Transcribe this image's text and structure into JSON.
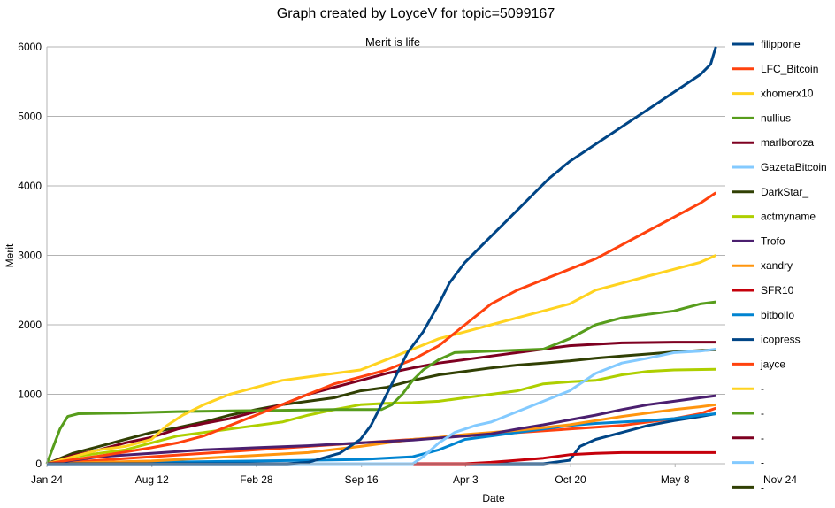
{
  "chart_data": {
    "type": "line",
    "title": "Graph created by LoyceV for topic=5099167",
    "subtitle": "Merit is life",
    "xlabel": "Date",
    "ylabel": "Merit",
    "ylim": [
      0,
      6000
    ],
    "yticks": [
      0,
      1000,
      2000,
      3000,
      4000,
      5000,
      6000
    ],
    "xlim": [
      0,
      1400
    ],
    "xticks": [
      {
        "x": 0,
        "label": "Jan 24"
      },
      {
        "x": 201,
        "label": "Aug 12"
      },
      {
        "x": 401,
        "label": "Feb 28"
      },
      {
        "x": 602,
        "label": "Sep 16"
      },
      {
        "x": 801,
        "label": "Apr 3"
      },
      {
        "x": 1002,
        "label": "Oct 20"
      },
      {
        "x": 1202,
        "label": "May 8"
      },
      {
        "x": 1403,
        "label": "Nov 24"
      }
    ],
    "grid": "horizontal",
    "legend_position": "right",
    "series": [
      {
        "name": "filippone",
        "color": "#004586",
        "points": [
          [
            0,
            0
          ],
          [
            460,
            0
          ],
          [
            500,
            20
          ],
          [
            560,
            150
          ],
          [
            600,
            350
          ],
          [
            620,
            550
          ],
          [
            640,
            850
          ],
          [
            660,
            1150
          ],
          [
            690,
            1600
          ],
          [
            720,
            1900
          ],
          [
            750,
            2300
          ],
          [
            770,
            2600
          ],
          [
            800,
            2900
          ],
          [
            840,
            3200
          ],
          [
            880,
            3500
          ],
          [
            920,
            3800
          ],
          [
            960,
            4100
          ],
          [
            1000,
            4350
          ],
          [
            1050,
            4600
          ],
          [
            1100,
            4850
          ],
          [
            1150,
            5100
          ],
          [
            1200,
            5350
          ],
          [
            1250,
            5600
          ],
          [
            1270,
            5750
          ],
          [
            1280,
            6000
          ]
        ]
      },
      {
        "name": "LFC_Bitcoin",
        "color": "#ff420e",
        "points": [
          [
            0,
            0
          ],
          [
            50,
            60
          ],
          [
            100,
            110
          ],
          [
            150,
            170
          ],
          [
            200,
            230
          ],
          [
            250,
            300
          ],
          [
            300,
            400
          ],
          [
            350,
            550
          ],
          [
            400,
            700
          ],
          [
            450,
            850
          ],
          [
            500,
            1000
          ],
          [
            550,
            1150
          ],
          [
            600,
            1250
          ],
          [
            650,
            1350
          ],
          [
            700,
            1500
          ],
          [
            750,
            1700
          ],
          [
            800,
            2000
          ],
          [
            850,
            2300
          ],
          [
            900,
            2500
          ],
          [
            950,
            2650
          ],
          [
            1000,
            2800
          ],
          [
            1050,
            2950
          ],
          [
            1100,
            3150
          ],
          [
            1150,
            3350
          ],
          [
            1200,
            3550
          ],
          [
            1250,
            3750
          ],
          [
            1280,
            3900
          ]
        ]
      },
      {
        "name": "xhomerx10",
        "color": "#ffd320",
        "points": [
          [
            0,
            0
          ],
          [
            50,
            100
          ],
          [
            100,
            200
          ],
          [
            150,
            250
          ],
          [
            200,
            350
          ],
          [
            230,
            550
          ],
          [
            260,
            700
          ],
          [
            300,
            850
          ],
          [
            350,
            1000
          ],
          [
            400,
            1100
          ],
          [
            450,
            1200
          ],
          [
            500,
            1250
          ],
          [
            550,
            1300
          ],
          [
            600,
            1350
          ],
          [
            650,
            1500
          ],
          [
            700,
            1650
          ],
          [
            750,
            1800
          ],
          [
            800,
            1900
          ],
          [
            850,
            2000
          ],
          [
            900,
            2100
          ],
          [
            950,
            2200
          ],
          [
            1000,
            2300
          ],
          [
            1050,
            2500
          ],
          [
            1100,
            2600
          ],
          [
            1150,
            2700
          ],
          [
            1200,
            2800
          ],
          [
            1250,
            2900
          ],
          [
            1280,
            3000
          ]
        ]
      },
      {
        "name": "nullius",
        "color": "#579d1c",
        "points": [
          [
            0,
            0
          ],
          [
            10,
            200
          ],
          [
            25,
            500
          ],
          [
            40,
            680
          ],
          [
            60,
            720
          ],
          [
            150,
            730
          ],
          [
            250,
            750
          ],
          [
            350,
            760
          ],
          [
            450,
            770
          ],
          [
            550,
            780
          ],
          [
            640,
            780
          ],
          [
            660,
            850
          ],
          [
            680,
            1000
          ],
          [
            700,
            1200
          ],
          [
            720,
            1350
          ],
          [
            750,
            1500
          ],
          [
            780,
            1600
          ],
          [
            850,
            1620
          ],
          [
            950,
            1650
          ],
          [
            1000,
            1800
          ],
          [
            1050,
            2000
          ],
          [
            1100,
            2100
          ],
          [
            1150,
            2150
          ],
          [
            1200,
            2200
          ],
          [
            1250,
            2300
          ],
          [
            1280,
            2330
          ]
        ]
      },
      {
        "name": "marlboroza",
        "color": "#7e0021",
        "points": [
          [
            0,
            0
          ],
          [
            50,
            120
          ],
          [
            100,
            200
          ],
          [
            150,
            300
          ],
          [
            200,
            380
          ],
          [
            250,
            500
          ],
          [
            300,
            580
          ],
          [
            350,
            650
          ],
          [
            400,
            750
          ],
          [
            450,
            850
          ],
          [
            500,
            1000
          ],
          [
            550,
            1100
          ],
          [
            600,
            1200
          ],
          [
            650,
            1300
          ],
          [
            700,
            1380
          ],
          [
            750,
            1450
          ],
          [
            800,
            1500
          ],
          [
            850,
            1550
          ],
          [
            900,
            1600
          ],
          [
            950,
            1650
          ],
          [
            1000,
            1700
          ],
          [
            1050,
            1720
          ],
          [
            1100,
            1740
          ],
          [
            1200,
            1750
          ],
          [
            1280,
            1750
          ]
        ]
      },
      {
        "name": "GazetaBitcoin",
        "color": "#83caff",
        "points": [
          [
            0,
            0
          ],
          [
            700,
            0
          ],
          [
            720,
            100
          ],
          [
            750,
            300
          ],
          [
            780,
            450
          ],
          [
            820,
            550
          ],
          [
            850,
            600
          ],
          [
            900,
            750
          ],
          [
            950,
            900
          ],
          [
            1000,
            1050
          ],
          [
            1050,
            1300
          ],
          [
            1100,
            1450
          ],
          [
            1150,
            1520
          ],
          [
            1200,
            1600
          ],
          [
            1250,
            1620
          ],
          [
            1280,
            1650
          ]
        ]
      },
      {
        "name": "DarkStar_",
        "color": "#314004",
        "points": [
          [
            0,
            0
          ],
          [
            50,
            150
          ],
          [
            100,
            250
          ],
          [
            150,
            350
          ],
          [
            200,
            450
          ],
          [
            250,
            520
          ],
          [
            300,
            600
          ],
          [
            350,
            700
          ],
          [
            400,
            780
          ],
          [
            450,
            850
          ],
          [
            500,
            900
          ],
          [
            550,
            950
          ],
          [
            600,
            1050
          ],
          [
            650,
            1100
          ],
          [
            700,
            1200
          ],
          [
            750,
            1280
          ],
          [
            800,
            1330
          ],
          [
            850,
            1380
          ],
          [
            900,
            1420
          ],
          [
            950,
            1450
          ],
          [
            1000,
            1480
          ],
          [
            1050,
            1520
          ],
          [
            1100,
            1550
          ],
          [
            1150,
            1580
          ],
          [
            1200,
            1610
          ],
          [
            1250,
            1630
          ],
          [
            1280,
            1640
          ]
        ]
      },
      {
        "name": "actmyname",
        "color": "#aecf00",
        "points": [
          [
            0,
            0
          ],
          [
            50,
            100
          ],
          [
            100,
            150
          ],
          [
            150,
            200
          ],
          [
            200,
            300
          ],
          [
            250,
            400
          ],
          [
            300,
            450
          ],
          [
            350,
            500
          ],
          [
            400,
            550
          ],
          [
            450,
            600
          ],
          [
            500,
            700
          ],
          [
            550,
            780
          ],
          [
            600,
            850
          ],
          [
            650,
            870
          ],
          [
            700,
            880
          ],
          [
            750,
            900
          ],
          [
            800,
            950
          ],
          [
            850,
            1000
          ],
          [
            900,
            1050
          ],
          [
            950,
            1150
          ],
          [
            1000,
            1180
          ],
          [
            1050,
            1200
          ],
          [
            1100,
            1280
          ],
          [
            1150,
            1330
          ],
          [
            1200,
            1350
          ],
          [
            1280,
            1360
          ]
        ]
      },
      {
        "name": "Trofo",
        "color": "#4b1f6f",
        "points": [
          [
            0,
            0
          ],
          [
            100,
            100
          ],
          [
            200,
            150
          ],
          [
            300,
            200
          ],
          [
            400,
            230
          ],
          [
            500,
            260
          ],
          [
            600,
            300
          ],
          [
            700,
            340
          ],
          [
            800,
            400
          ],
          [
            850,
            430
          ],
          [
            900,
            500
          ],
          [
            950,
            560
          ],
          [
            1000,
            630
          ],
          [
            1050,
            700
          ],
          [
            1100,
            780
          ],
          [
            1150,
            850
          ],
          [
            1200,
            900
          ],
          [
            1250,
            950
          ],
          [
            1280,
            980
          ]
        ]
      },
      {
        "name": "xandry",
        "color": "#ff950e",
        "points": [
          [
            0,
            0
          ],
          [
            100,
            20
          ],
          [
            200,
            40
          ],
          [
            300,
            80
          ],
          [
            400,
            120
          ],
          [
            500,
            160
          ],
          [
            600,
            250
          ],
          [
            650,
            300
          ],
          [
            700,
            350
          ],
          [
            750,
            380
          ],
          [
            800,
            420
          ],
          [
            850,
            450
          ],
          [
            900,
            480
          ],
          [
            950,
            520
          ],
          [
            1000,
            560
          ],
          [
            1050,
            620
          ],
          [
            1100,
            680
          ],
          [
            1150,
            730
          ],
          [
            1200,
            780
          ],
          [
            1250,
            820
          ],
          [
            1280,
            850
          ]
        ]
      },
      {
        "name": "SFR10",
        "color": "#c5000b",
        "points": [
          [
            0,
            0
          ],
          [
            800,
            0
          ],
          [
            850,
            20
          ],
          [
            900,
            50
          ],
          [
            950,
            80
          ],
          [
            1000,
            130
          ],
          [
            1050,
            150
          ],
          [
            1100,
            160
          ],
          [
            1150,
            160
          ],
          [
            1200,
            160
          ],
          [
            1280,
            160
          ]
        ]
      },
      {
        "name": "bitbollo",
        "color": "#0084d1",
        "points": [
          [
            0,
            0
          ],
          [
            200,
            20
          ],
          [
            400,
            40
          ],
          [
            600,
            60
          ],
          [
            700,
            100
          ],
          [
            750,
            200
          ],
          [
            800,
            350
          ],
          [
            850,
            400
          ],
          [
            900,
            450
          ],
          [
            950,
            500
          ],
          [
            1000,
            550
          ],
          [
            1050,
            580
          ],
          [
            1100,
            600
          ],
          [
            1150,
            620
          ],
          [
            1200,
            650
          ],
          [
            1250,
            700
          ],
          [
            1280,
            720
          ]
        ]
      },
      {
        "name": "icopress",
        "color": "#004586",
        "points": [
          [
            0,
            0
          ],
          [
            950,
            0
          ],
          [
            1000,
            50
          ],
          [
            1020,
            250
          ],
          [
            1050,
            350
          ],
          [
            1100,
            450
          ],
          [
            1150,
            550
          ],
          [
            1200,
            620
          ],
          [
            1250,
            680
          ],
          [
            1280,
            720
          ]
        ]
      },
      {
        "name": "jayce",
        "color": "#ff420e",
        "points": [
          [
            0,
            0
          ],
          [
            100,
            50
          ],
          [
            200,
            100
          ],
          [
            300,
            150
          ],
          [
            400,
            200
          ],
          [
            500,
            250
          ],
          [
            600,
            300
          ],
          [
            700,
            350
          ],
          [
            800,
            400
          ],
          [
            900,
            450
          ],
          [
            1000,
            500
          ],
          [
            1100,
            550
          ],
          [
            1150,
            600
          ],
          [
            1200,
            650
          ],
          [
            1250,
            720
          ],
          [
            1280,
            800
          ]
        ]
      },
      {
        "name": "-",
        "color": "#ffd320",
        "points": []
      },
      {
        "name": "-",
        "color": "#579d1c",
        "points": []
      },
      {
        "name": "-",
        "color": "#7e0021",
        "points": []
      },
      {
        "name": "-",
        "color": "#83caff",
        "points": []
      },
      {
        "name": "-",
        "color": "#314004",
        "points": []
      }
    ]
  }
}
